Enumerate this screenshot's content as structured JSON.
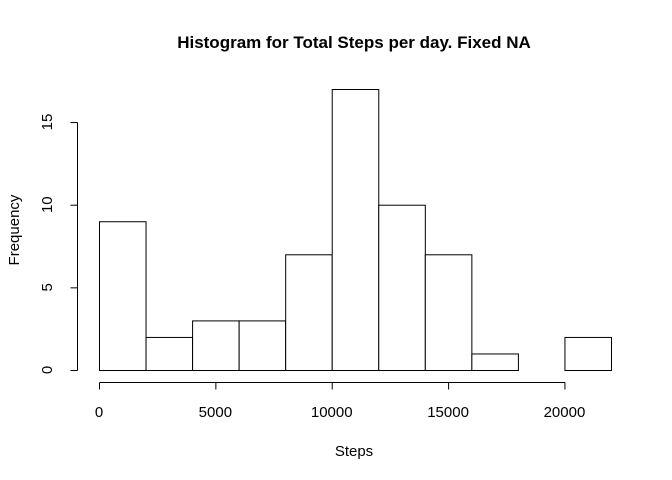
{
  "chart_data": {
    "type": "bar",
    "title": "Histogram for Total Steps per day. Fixed NA",
    "xlabel": "Steps",
    "ylabel": "Frequency",
    "bin_edges": [
      0,
      2000,
      4000,
      6000,
      8000,
      10000,
      12000,
      14000,
      16000,
      18000,
      20000,
      22000
    ],
    "values": [
      9,
      2,
      3,
      3,
      7,
      17,
      10,
      7,
      1,
      0,
      2
    ],
    "xlim": [
      0,
      22000
    ],
    "ylim": [
      0,
      17
    ],
    "x_ticks": [
      0,
      5000,
      10000,
      15000,
      20000
    ],
    "y_ticks": [
      0,
      5,
      10,
      15
    ],
    "grid": false,
    "legend": "none"
  }
}
